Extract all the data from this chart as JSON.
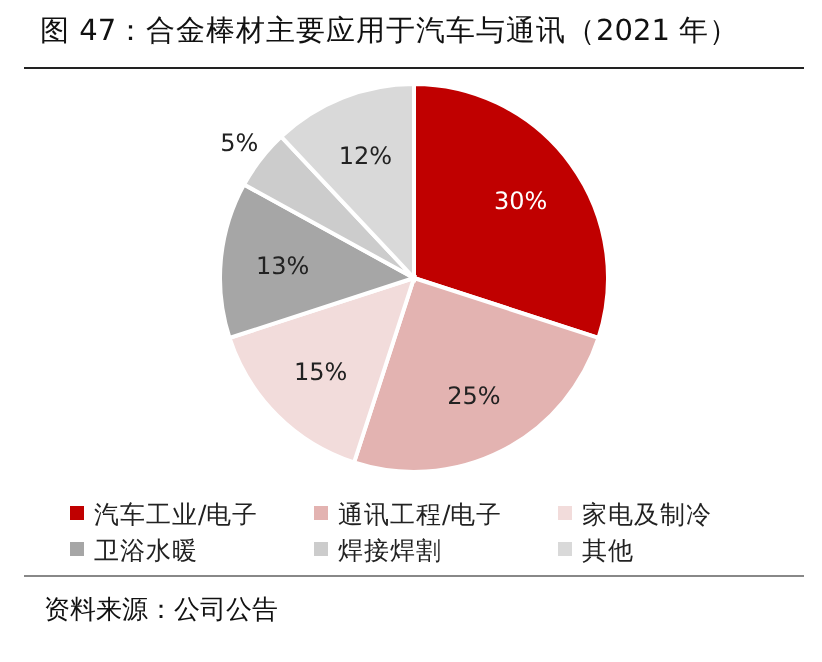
{
  "chart_data": {
    "type": "pie",
    "title": "图 47：合金棒材主要应用于汽车与通讯（2021 年）",
    "categories": [
      "汽车工业/电子",
      "通讯工程/电子",
      "家电及制冷",
      "卫浴水暖",
      "焊接焊割",
      "其他"
    ],
    "values": [
      30,
      25,
      15,
      13,
      5,
      12
    ],
    "colors": [
      "#c00000",
      "#e3b3b1",
      "#f2dcdb",
      "#a6a6a6",
      "#cccccc",
      "#d9d9d9"
    ],
    "value_labels": [
      "30%",
      "25%",
      "15%",
      "13%",
      "5%",
      "12%"
    ],
    "legend": "bottom",
    "annotations": [
      "资料来源：公司公告"
    ]
  }
}
